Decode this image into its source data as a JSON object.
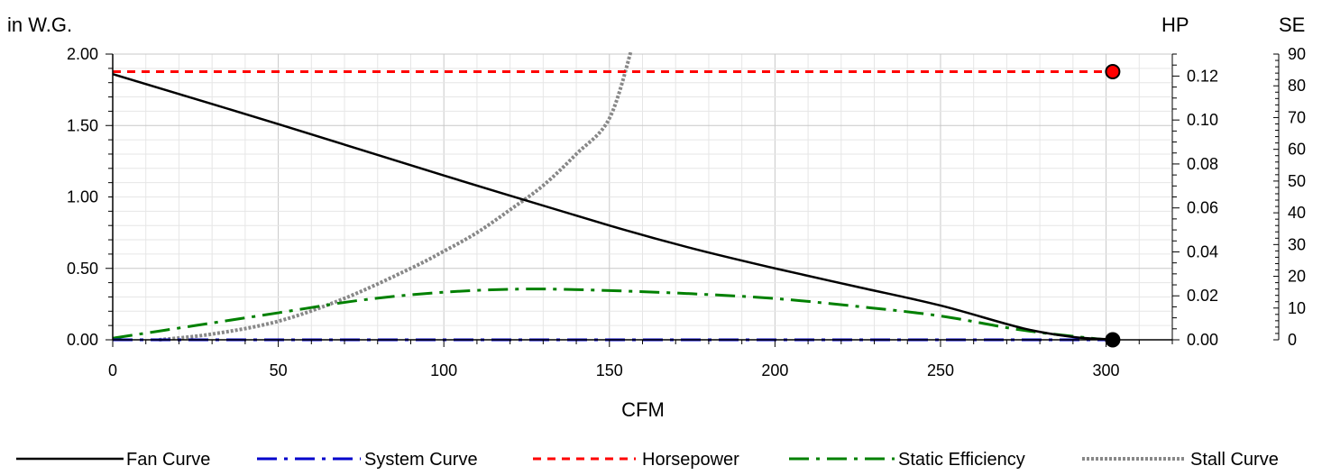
{
  "chart_data": {
    "type": "line",
    "xlabel": "CFM",
    "ylabel": "in W.G.",
    "y2label": "HP",
    "y3label": "SE",
    "xlim": [
      0,
      320
    ],
    "ylim": [
      0,
      2.0
    ],
    "y2lim": [
      0,
      0.13
    ],
    "y3lim": [
      0,
      90
    ],
    "x_ticks": [
      "0",
      "50",
      "100",
      "150",
      "200",
      "250",
      "300"
    ],
    "y_ticks": [
      "0.00",
      "0.50",
      "1.00",
      "1.50",
      "2.00"
    ],
    "y2_ticks": [
      "0.00",
      "0.02",
      "0.04",
      "0.06",
      "0.08",
      "0.10",
      "0.12"
    ],
    "y3_ticks": [
      "0",
      "10",
      "20",
      "30",
      "40",
      "50",
      "60",
      "70",
      "80",
      "90"
    ],
    "grid": true,
    "legend_position": "bottom",
    "series": [
      {
        "name": "Fan Curve",
        "axis": "y",
        "color": "#000000",
        "style": "solid",
        "x": [
          0,
          50,
          100,
          150,
          175,
          200,
          225,
          250,
          275,
          290,
          300,
          302
        ],
        "y": [
          1.86,
          1.51,
          1.15,
          0.8,
          0.64,
          0.5,
          0.37,
          0.24,
          0.08,
          0.02,
          0.005,
          0.0
        ]
      },
      {
        "name": "System Curve",
        "axis": "y",
        "color": "#0000cc",
        "style": "dashdot",
        "x": [
          0,
          302
        ],
        "y": [
          0.0,
          0.0
        ]
      },
      {
        "name": "Horsepower",
        "axis": "y2",
        "color": "#ff0000",
        "style": "dashed",
        "x": [
          0,
          302
        ],
        "y": [
          0.122,
          0.122
        ]
      },
      {
        "name": "Static Efficiency",
        "axis": "y3",
        "color": "#008000",
        "style": "dashdot",
        "x": [
          0,
          25,
          50,
          75,
          100,
          125,
          150,
          175,
          200,
          225,
          250,
          275,
          300
        ],
        "y": [
          0.5,
          4.5,
          8.5,
          12.5,
          15,
          16,
          15.5,
          14.5,
          13,
          10.5,
          7.5,
          3,
          0
        ]
      },
      {
        "name": "Stall Curve",
        "axis": "y",
        "color": "#888888",
        "style": "dotted",
        "x": [
          14,
          30,
          50,
          70,
          90,
          100,
          110,
          120,
          130,
          140,
          150,
          157
        ],
        "y": [
          0.0,
          0.04,
          0.13,
          0.29,
          0.5,
          0.62,
          0.75,
          0.91,
          1.08,
          1.3,
          1.55,
          2.06
        ]
      }
    ],
    "markers": [
      {
        "x": 302,
        "y": 0.122,
        "axis": "y2",
        "color": "#ff0000"
      },
      {
        "x": 302,
        "y": 0.0,
        "axis": "y",
        "color": "#000000"
      }
    ]
  }
}
